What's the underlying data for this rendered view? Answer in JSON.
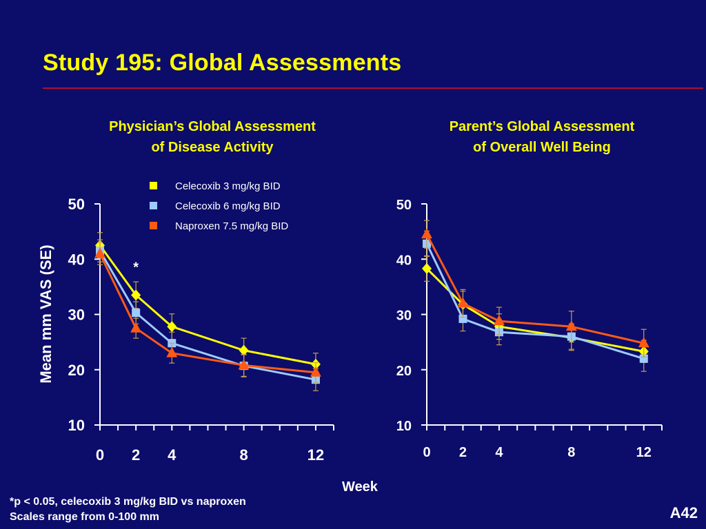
{
  "slide": {
    "title": "Study 195:  Global Assessments",
    "footnote_lines": [
      "*p < 0.05, celecoxib 3 mg/kg BID vs naproxen",
      "Scales range from 0-100 mm"
    ],
    "slide_id": "A42",
    "colors": {
      "background": "#0c0c6a",
      "title": "#ffff00",
      "rule": "#b01030",
      "series": [
        "#ffff00",
        "#9ecbff",
        "#ff5a14"
      ]
    }
  },
  "chart_data": [
    {
      "type": "line",
      "title_lines": [
        "Physician’s Global Assessment",
        "of Disease Activity"
      ],
      "xlabel": "Week",
      "ylabel": "Mean mm VAS (SE)",
      "x": [
        0,
        2,
        4,
        8,
        12
      ],
      "xticks": [
        0,
        2,
        4,
        8,
        12
      ],
      "xlim": [
        0,
        13
      ],
      "ylim": [
        10,
        50
      ],
      "yticks": [
        10,
        20,
        30,
        40,
        50
      ],
      "legend": "top-center",
      "annotations": [
        {
          "text": "*",
          "x": 2,
          "y": 38.5
        }
      ],
      "series": [
        {
          "name": "Celecoxib 3 mg/kg BID",
          "marker": "diamond",
          "color": "#ffff00",
          "values": [
            42.5,
            33.5,
            27.8,
            23.5,
            21.0
          ],
          "se": [
            2.3,
            2.4,
            2.3,
            2.2,
            2.0
          ]
        },
        {
          "name": "Celecoxib 6 mg/kg BID",
          "marker": "square",
          "color": "#9ecbff",
          "values": [
            41.5,
            30.3,
            24.8,
            20.7,
            18.2
          ],
          "se": [
            2.0,
            2.0,
            2.0,
            2.0,
            2.0
          ]
        },
        {
          "name": "Naproxen 7.5 mg/kg BID",
          "marker": "triangle",
          "color": "#ff5a14",
          "values": [
            41.0,
            27.5,
            23.0,
            20.8,
            19.5
          ],
          "se": [
            2.0,
            1.8,
            1.8,
            2.0,
            1.8
          ]
        }
      ]
    },
    {
      "type": "line",
      "title_lines": [
        "Parent’s Global Assessment",
        "of Overall Well Being"
      ],
      "xlabel": "Week",
      "ylabel": "",
      "x": [
        0,
        2,
        4,
        8,
        12
      ],
      "xticks": [
        0,
        2,
        4,
        8,
        12
      ],
      "xlim": [
        0,
        13
      ],
      "ylim": [
        10,
        50
      ],
      "yticks": [
        10,
        20,
        30,
        40,
        50
      ],
      "annotations": [],
      "series": [
        {
          "name": "Celecoxib 3 mg/kg BID",
          "marker": "diamond",
          "color": "#ffff00",
          "values": [
            38.3,
            31.8,
            27.8,
            25.8,
            23.3
          ],
          "se": [
            2.3,
            2.4,
            2.3,
            2.3,
            2.0
          ]
        },
        {
          "name": "Celecoxib 6 mg/kg BID",
          "marker": "square",
          "color": "#9ecbff",
          "values": [
            42.8,
            29.2,
            26.8,
            26.0,
            22.0
          ],
          "se": [
            2.3,
            2.2,
            2.3,
            2.3,
            2.3
          ]
        },
        {
          "name": "Naproxen 7.5 mg/kg BID",
          "marker": "triangle",
          "color": "#ff5a14",
          "values": [
            44.5,
            32.0,
            28.8,
            27.8,
            24.8
          ],
          "se": [
            2.5,
            2.5,
            2.5,
            2.8,
            2.5
          ]
        }
      ]
    }
  ]
}
